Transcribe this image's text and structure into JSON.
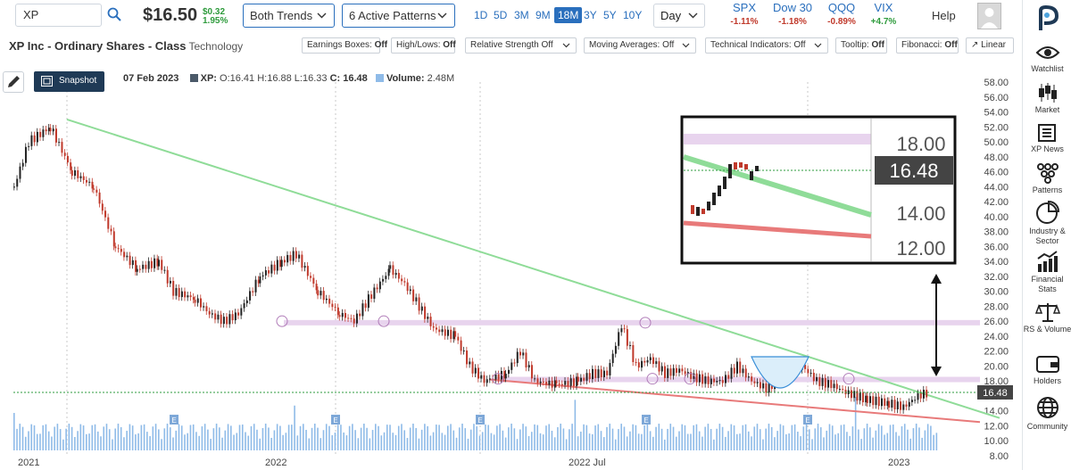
{
  "topbar": {
    "search_value": "XP",
    "price": "$16.50",
    "change_abs": "$0.32",
    "change_pct": "1.95%",
    "trend_dropdown": "Both Trends",
    "patterns_dropdown": "6 Active Patterns",
    "ranges": [
      "1D",
      "5D",
      "3M",
      "9M",
      "18M",
      "3Y",
      "5Y",
      "10Y"
    ],
    "selected_range": "18M",
    "interval": "Day",
    "indices": [
      {
        "name": "SPX",
        "value": "-1.11%"
      },
      {
        "name": "Dow 30",
        "value": "-1.18%"
      },
      {
        "name": "QQQ",
        "value": "-0.89%"
      },
      {
        "name": "VIX",
        "value": "+4.7%"
      }
    ],
    "help_label": "Help"
  },
  "subbar": {
    "title": "XP Inc - Ordinary Shares - Class",
    "sector": "Technology",
    "toggles": [
      {
        "label": "Earnings Boxes:",
        "value": "Off"
      },
      {
        "label": "High/Lows:",
        "value": "Off"
      },
      {
        "label": "Relative Strength Off",
        "value": ""
      },
      {
        "label": "Moving Averages: Off",
        "value": ""
      },
      {
        "label": "Technical Indicators: Off",
        "value": ""
      },
      {
        "label": "Tooltip:",
        "value": "Off"
      },
      {
        "label": "Fibonacci:",
        "value": "Off"
      },
      {
        "label": "Linear",
        "value": ""
      }
    ]
  },
  "chartbar": {
    "snapshot_label": "Snapshot",
    "date": "07 Feb 2023",
    "symbol": "XP:",
    "ohlc": "O:16.41 H:16.88 L:16.33",
    "close": "C: 16.48",
    "volume_label": "Volume:",
    "volume": "2.48M"
  },
  "sidebar": {
    "items": [
      "Watchlist",
      "Market",
      "XP News",
      "Patterns",
      "Industry & Sector",
      "Financial Stats",
      "RS & Volume",
      "Holders",
      "Community"
    ]
  },
  "colors": {
    "up": "#222222",
    "down": "#c0392b",
    "support": "#e87a7a",
    "resistance": "#8fdc98",
    "pattern_band": "#e8d4ee",
    "volume": "#8fbbe8",
    "accent": "#2a6fbd"
  },
  "chart_data": {
    "type": "candlestick",
    "symbol": "XP",
    "x_tick_labels": [
      "2021",
      "2022",
      "2022 Jul",
      "2023"
    ],
    "y_tick_labels": [
      "58.00",
      "56.00",
      "54.00",
      "52.00",
      "50.00",
      "48.00",
      "46.00",
      "44.00",
      "42.00",
      "40.00",
      "38.00",
      "36.00",
      "34.00",
      "32.00",
      "30.00",
      "28.00",
      "26.00",
      "24.00",
      "22.00",
      "20.00",
      "18.00",
      "16.00",
      "14.00",
      "12.00",
      "10.00",
      "8.00"
    ],
    "ylim": [
      8,
      58
    ],
    "last_price_label": "16.48",
    "earnings_marker_label": "E",
    "close_path": [
      [
        0,
        44
      ],
      [
        10,
        50
      ],
      [
        25,
        52
      ],
      [
        40,
        46
      ],
      [
        55,
        44
      ],
      [
        70,
        36
      ],
      [
        85,
        33
      ],
      [
        100,
        34
      ],
      [
        110,
        30
      ],
      [
        125,
        29
      ],
      [
        135,
        27
      ],
      [
        145,
        26
      ],
      [
        155,
        27
      ],
      [
        170,
        32
      ],
      [
        185,
        34
      ],
      [
        195,
        35
      ],
      [
        210,
        30
      ],
      [
        225,
        27
      ],
      [
        235,
        26
      ],
      [
        245,
        29
      ],
      [
        260,
        33
      ],
      [
        270,
        31
      ],
      [
        280,
        28
      ],
      [
        290,
        25
      ],
      [
        305,
        24
      ],
      [
        315,
        20
      ],
      [
        325,
        18
      ],
      [
        340,
        19
      ],
      [
        350,
        22
      ],
      [
        360,
        18
      ],
      [
        375,
        17.5
      ],
      [
        390,
        18
      ],
      [
        400,
        19
      ],
      [
        410,
        19
      ],
      [
        420,
        25.5
      ],
      [
        430,
        20
      ],
      [
        440,
        21
      ],
      [
        450,
        19
      ],
      [
        460,
        19.5
      ],
      [
        470,
        18.5
      ],
      [
        480,
        18
      ],
      [
        490,
        18
      ],
      [
        500,
        20
      ],
      [
        510,
        18
      ],
      [
        520,
        17
      ],
      [
        535,
        19
      ],
      [
        545,
        20
      ],
      [
        555,
        18
      ],
      [
        565,
        17.5
      ],
      [
        575,
        16.5
      ],
      [
        590,
        15.5
      ],
      [
        605,
        15
      ],
      [
        615,
        14.5
      ],
      [
        625,
        16
      ],
      [
        632,
        16.48
      ]
    ],
    "support_line": {
      "from_price": 18.2,
      "to_price": 12.5
    },
    "resistance_line": {
      "from_price": 53,
      "to_price": 14
    },
    "pattern_bands": [
      25.8,
      18.2
    ],
    "inset_ticks": [
      "18.00",
      "16.48",
      "14.00",
      "12.00"
    ]
  }
}
